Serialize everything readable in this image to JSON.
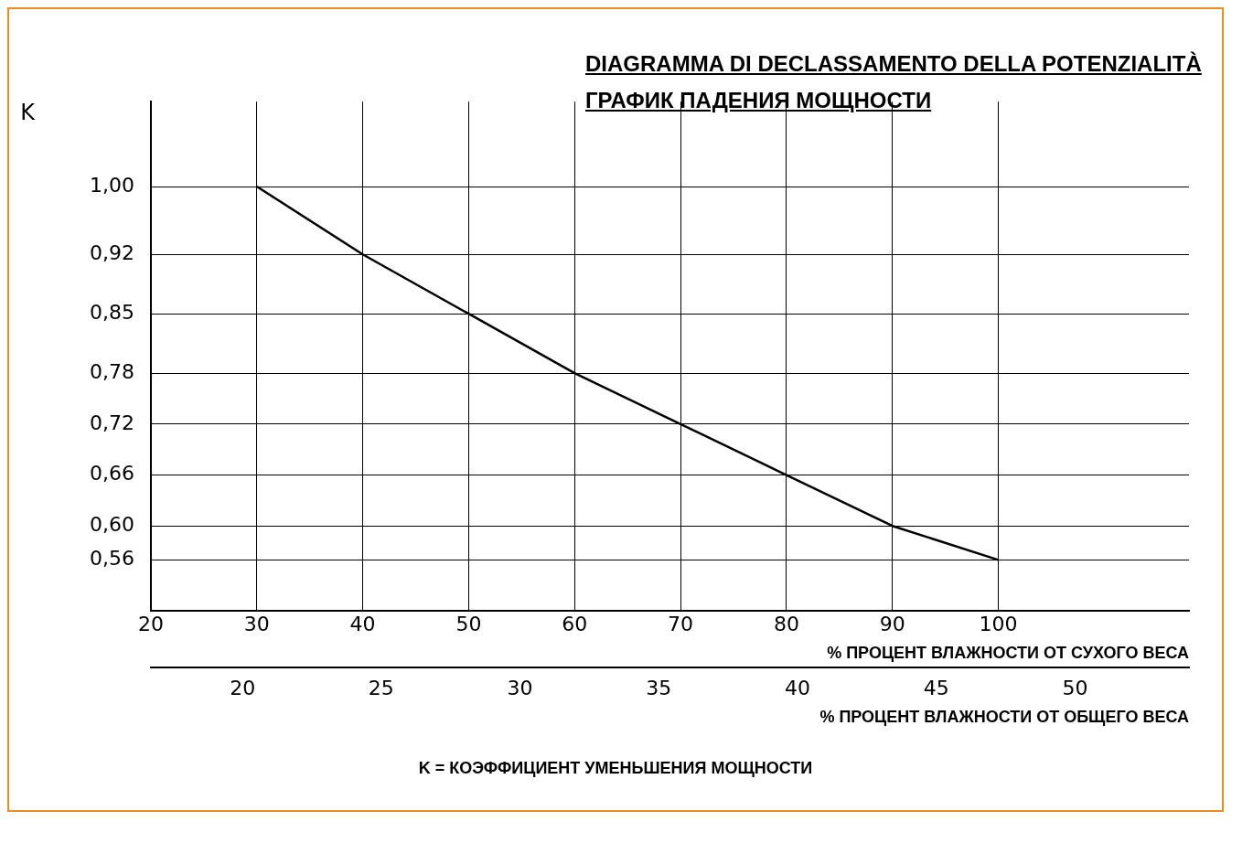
{
  "chart_data": {
    "type": "line",
    "title": "DIAGRAMMA DI DECLASSAMENTO DELLA POTENZIALITÀ",
    "subtitle": "ГРАФИК ПАДЕНИЯ МОЩНОСТИ",
    "ylabel": "K",
    "xlabel": "% ПРОЦЕНТ ВЛАЖНОСТИ ОТ СУХОГО ВЕСА",
    "x2label": "% ПРОЦЕНТ ВЛАЖНОСТИ ОТ ОБЩЕГО ВЕСА",
    "annotations": [
      "K = КОЭФФИЦИЕНТ УМЕНЬШЕНИЯ МОЩНОСТИ"
    ],
    "x": [
      30,
      40,
      50,
      60,
      70,
      80,
      90,
      100
    ],
    "series": [
      {
        "color": "#000000",
        "values": [
          1.0,
          0.92,
          0.85,
          0.78,
          0.72,
          0.66,
          0.6,
          0.56
        ]
      }
    ],
    "xlim": [
      20,
      118
    ],
    "xticks": [
      20,
      30,
      40,
      50,
      60,
      70,
      80,
      90,
      100
    ],
    "x2lim": [
      16.7,
      54.1
    ],
    "x2ticks": [
      20,
      25,
      30,
      35,
      40,
      45,
      50
    ],
    "ylim": [
      0.5,
      1.1
    ],
    "yticks": [
      {
        "value": 1.0,
        "label": "1,00"
      },
      {
        "value": 0.92,
        "label": "0,92"
      },
      {
        "value": 0.85,
        "label": "0,85"
      },
      {
        "value": 0.78,
        "label": "0,78"
      },
      {
        "value": 0.72,
        "label": "0,72"
      },
      {
        "value": 0.66,
        "label": "0,66"
      },
      {
        "value": 0.6,
        "label": "0,60"
      },
      {
        "value": 0.56,
        "label": "0,56"
      }
    ],
    "grid": true,
    "legend": false,
    "marker": "none",
    "line_style": "solid"
  }
}
